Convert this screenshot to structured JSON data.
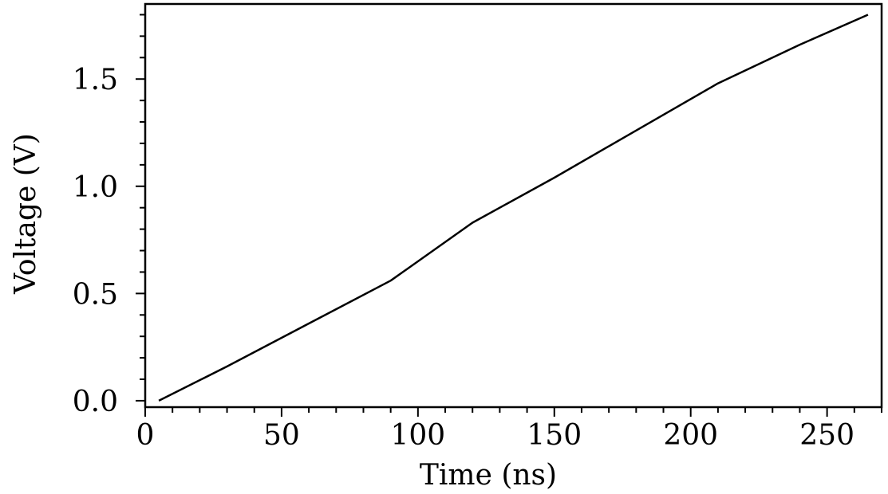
{
  "chart_data": {
    "type": "line",
    "title": "",
    "xlabel": "Time (ns)",
    "ylabel": "Voltage (V)",
    "xlim": [
      0,
      270
    ],
    "ylim": [
      -0.03,
      1.85
    ],
    "xticks": [
      0,
      50,
      100,
      150,
      200,
      250
    ],
    "xtick_labels": [
      "0",
      "50",
      "100",
      "150",
      "200",
      "250"
    ],
    "yticks": [
      0.0,
      0.5,
      1.0,
      1.5
    ],
    "ytick_labels": [
      "0.0",
      "0.5",
      "1.0",
      "1.5"
    ],
    "x_minor_step": 10,
    "y_minor_step": 0.1,
    "grid": false,
    "legend": "none",
    "series": [
      {
        "x": [
          5,
          30,
          60,
          90,
          120,
          150,
          180,
          210,
          240,
          265
        ],
        "y": [
          0.0,
          0.16,
          0.36,
          0.56,
          0.83,
          1.04,
          1.26,
          1.48,
          1.66,
          1.8
        ]
      }
    ],
    "colors": {
      "line": "#000000",
      "axis": "#000000",
      "background": "#ffffff"
    }
  }
}
